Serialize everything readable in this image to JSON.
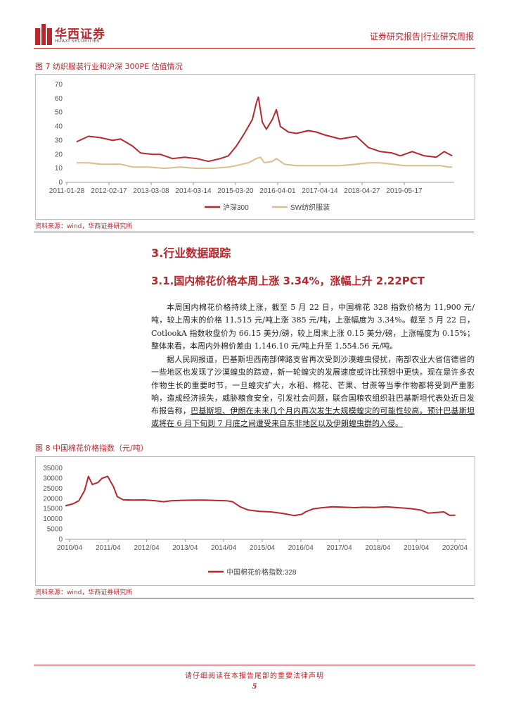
{
  "header": {
    "logo_cn": "华西证券",
    "logo_en": "HUAXI SECURITIES",
    "report_type": "证券研究报告|行业研究周报"
  },
  "figure7": {
    "title": "图 7 纺织服装行业和沪深 300PE 估值情况",
    "source": "资料来源：wind，华西证券研究所"
  },
  "figure8": {
    "title": "图 8 中国棉花价格指数（元/吨）",
    "source": "资料来源：wind，华西证券研究所"
  },
  "section": {
    "h3": "3.行业数据跟踪",
    "h31": "3.1.国内棉花价格本周上涨 3.34%，涨幅上升 2.22PCT",
    "para1": "本周国内棉花价格持续上涨，截至 5 月 22 日，中国棉花 328 指数价格为 11,900 元/吨，较上周末的价格 11,515 元/吨上涨 385 元/吨，上涨幅度为 3.34%。截至 5 月 22 日，CotlookA 指数收盘价为 66.15 美分/磅，较上周末上涨 0.15 美分/磅，上涨幅度为 0.15%；整体来看，本周内外棉价差由 1,146.10 元/吨上升至 1,554.56 元/吨。",
    "para2_plain": "据人民网报道，巴基斯坦西南部俾路支省再次受到沙漠蝗虫侵扰，南部农业大省信德省的一些地区也发现了沙漠蝗虫的踪迹，新一轮蝗灾的发展速度或许比预想中更快。现在是许多农作物生长的重要时节，一旦蝗灾扩大，水稻、棉花、芒果、甘蔗等当季作物都将受到严重影响，造成经济损失，威胁粮食安全，引发社会问题，联合国粮农组织驻巴基斯坦代表处近日发布报告称，",
    "para2_underline": "巴基斯坦、伊朗在未来几个月内再次发生大规模蝗灾的可能性较高。预计巴基斯坦或将在 6 月下旬到 7 月底之间遭受来自东非地区以及伊朗蝗虫群的入侵。"
  },
  "footer": {
    "disclaimer": "请仔细阅读在本报告尾部的重要法律声明",
    "page": "5"
  },
  "colors": {
    "accent": "#b7272d",
    "series1": "#b7272d",
    "series2": "#d8bf8a"
  },
  "chart_data": [
    {
      "type": "line",
      "title": "",
      "x_ticks": [
        "2011-01-28",
        "2012-02-17",
        "2013-03-08",
        "2014-03-14",
        "2015-03-20",
        "2016-04-01",
        "2017-04-14",
        "2018-04-27",
        "2019-05-17"
      ],
      "ylim": [
        0,
        70
      ],
      "y_ticks": [
        "0",
        "10",
        "20",
        "30",
        "40",
        "50",
        "60",
        "70"
      ],
      "legend_position": "bottom",
      "series": [
        {
          "name": "沪深300",
          "color": "#b7272d",
          "points": [
            [
              2011.0,
              29
            ],
            [
              2011.3,
              33
            ],
            [
              2011.6,
              32
            ],
            [
              2011.9,
              30
            ],
            [
              2012.1,
              31
            ],
            [
              2012.4,
              26
            ],
            [
              2012.6,
              21
            ],
            [
              2012.9,
              20
            ],
            [
              2013.1,
              20
            ],
            [
              2013.4,
              17
            ],
            [
              2013.7,
              18
            ],
            [
              2014.0,
              17
            ],
            [
              2014.3,
              15
            ],
            [
              2014.6,
              17
            ],
            [
              2014.8,
              19
            ],
            [
              2015.0,
              26
            ],
            [
              2015.2,
              35
            ],
            [
              2015.4,
              45
            ],
            [
              2015.5,
              57
            ],
            [
              2015.55,
              61
            ],
            [
              2015.65,
              43
            ],
            [
              2015.75,
              38
            ],
            [
              2015.9,
              45
            ],
            [
              2016.0,
              52
            ],
            [
              2016.1,
              40
            ],
            [
              2016.3,
              36
            ],
            [
              2016.5,
              35
            ],
            [
              2016.8,
              37
            ],
            [
              2017.0,
              36
            ],
            [
              2017.2,
              34
            ],
            [
              2017.6,
              31
            ],
            [
              2018.0,
              33
            ],
            [
              2018.3,
              25
            ],
            [
              2018.6,
              22
            ],
            [
              2018.9,
              21
            ],
            [
              2019.1,
              19
            ],
            [
              2019.4,
              22
            ],
            [
              2019.7,
              19
            ],
            [
              2020.0,
              18
            ],
            [
              2020.2,
              22
            ],
            [
              2020.4,
              19
            ]
          ]
        },
        {
          "name": "SW纺织服装",
          "color": "#d8bf8a",
          "points": [
            [
              2011.0,
              14
            ],
            [
              2011.3,
              14
            ],
            [
              2011.6,
              13
            ],
            [
              2011.9,
              13
            ],
            [
              2012.1,
              13
            ],
            [
              2012.4,
              11
            ],
            [
              2012.8,
              11
            ],
            [
              2013.2,
              10
            ],
            [
              2013.6,
              11
            ],
            [
              2014.0,
              10
            ],
            [
              2014.4,
              10
            ],
            [
              2014.8,
              11
            ],
            [
              2015.0,
              12
            ],
            [
              2015.3,
              14
            ],
            [
              2015.5,
              17
            ],
            [
              2015.6,
              18
            ],
            [
              2015.7,
              14
            ],
            [
              2015.9,
              15
            ],
            [
              2016.0,
              17
            ],
            [
              2016.2,
              13
            ],
            [
              2016.5,
              12
            ],
            [
              2016.9,
              12
            ],
            [
              2017.2,
              12
            ],
            [
              2017.6,
              12
            ],
            [
              2018.0,
              13
            ],
            [
              2018.3,
              14
            ],
            [
              2018.6,
              14
            ],
            [
              2018.9,
              13
            ],
            [
              2019.2,
              12
            ],
            [
              2019.5,
              12
            ],
            [
              2019.8,
              12
            ],
            [
              2020.1,
              12
            ],
            [
              2020.3,
              11
            ],
            [
              2020.4,
              11
            ]
          ]
        }
      ]
    },
    {
      "type": "line",
      "title": "",
      "x_ticks": [
        "2010/04",
        "2011/04",
        "2012/04",
        "2013/04",
        "2014/04",
        "2015/04",
        "2016/04",
        "2017/04",
        "2018/04",
        "2019/04",
        "2020/04"
      ],
      "ylim": [
        0,
        35000
      ],
      "y_ticks": [
        "0",
        "5000",
        "10000",
        "15000",
        "20000",
        "25000",
        "30000",
        "35000"
      ],
      "legend_position": "bottom",
      "series": [
        {
          "name": "中国棉花价格指数:328",
          "color": "#b7272d",
          "points": [
            [
              2010.25,
              16500
            ],
            [
              2010.45,
              17500
            ],
            [
              2010.6,
              19000
            ],
            [
              2010.75,
              24000
            ],
            [
              2010.85,
              31000
            ],
            [
              2010.95,
              27000
            ],
            [
              2011.1,
              28000
            ],
            [
              2011.2,
              30000
            ],
            [
              2011.35,
              31000
            ],
            [
              2011.5,
              26000
            ],
            [
              2011.6,
              21000
            ],
            [
              2011.75,
              19500
            ],
            [
              2012.0,
              19300
            ],
            [
              2012.3,
              19400
            ],
            [
              2012.6,
              19000
            ],
            [
              2012.8,
              18500
            ],
            [
              2013.0,
              19000
            ],
            [
              2013.3,
              19200
            ],
            [
              2013.6,
              19300
            ],
            [
              2013.9,
              19300
            ],
            [
              2014.2,
              19100
            ],
            [
              2014.45,
              19000
            ],
            [
              2014.6,
              18500
            ],
            [
              2014.8,
              16000
            ],
            [
              2015.0,
              14500
            ],
            [
              2015.3,
              13800
            ],
            [
              2015.6,
              13500
            ],
            [
              2015.9,
              12800
            ],
            [
              2016.2,
              11700
            ],
            [
              2016.4,
              12300
            ],
            [
              2016.5,
              13500
            ],
            [
              2016.7,
              15000
            ],
            [
              2016.9,
              15500
            ],
            [
              2017.2,
              16000
            ],
            [
              2017.5,
              15800
            ],
            [
              2017.8,
              15600
            ],
            [
              2018.0,
              15800
            ],
            [
              2018.3,
              15700
            ],
            [
              2018.6,
              16000
            ],
            [
              2018.9,
              15600
            ],
            [
              2019.2,
              15200
            ],
            [
              2019.5,
              14400
            ],
            [
              2019.7,
              12900
            ],
            [
              2019.9,
              13200
            ],
            [
              2020.1,
              13500
            ],
            [
              2020.25,
              11800
            ],
            [
              2020.4,
              11900
            ]
          ]
        }
      ]
    }
  ]
}
